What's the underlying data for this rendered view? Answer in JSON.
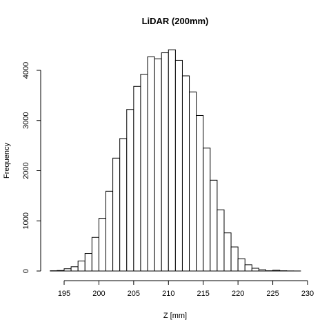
{
  "chart_data": {
    "type": "bar",
    "title": "LiDAR (200mm)",
    "xlabel": "Z [mm]",
    "ylabel": "Frequency",
    "bin_width": 1,
    "bin_start": 193,
    "values": [
      5,
      10,
      45,
      85,
      200,
      350,
      670,
      1050,
      1590,
      2250,
      2640,
      3220,
      3680,
      3920,
      4270,
      4230,
      4350,
      4410,
      4200,
      3890,
      3570,
      3100,
      2450,
      1810,
      1220,
      760,
      480,
      245,
      125,
      55,
      25,
      5,
      15,
      5,
      2,
      1
    ],
    "xlim": [
      193,
      229
    ],
    "ylim": [
      0,
      4410
    ],
    "x_ticks": [
      195,
      200,
      205,
      210,
      215,
      220,
      225,
      230
    ],
    "y_ticks": [
      0,
      1000,
      2000,
      3000,
      4000
    ],
    "grid": false
  }
}
